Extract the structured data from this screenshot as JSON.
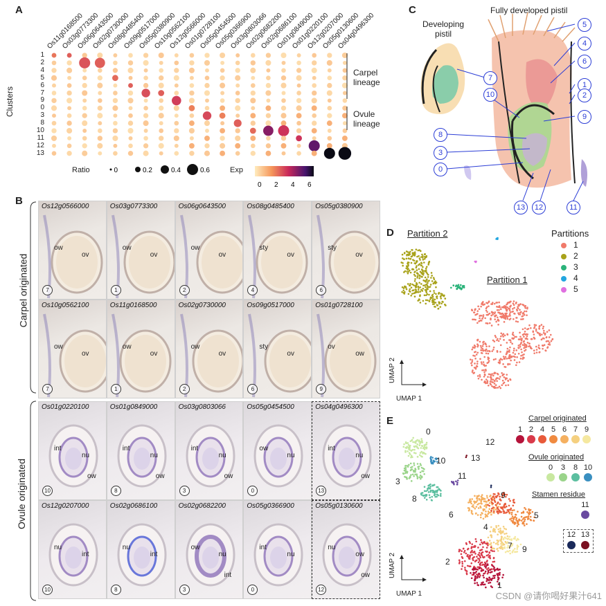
{
  "panels": {
    "A": "A",
    "B": "B",
    "C": "C",
    "D": "D",
    "E": "E"
  },
  "panelA": {
    "genes": [
      "Os11g0168500",
      "Os03g0773300",
      "Os06g0643500",
      "Os02g0730000",
      "Os08g0485400",
      "Os09g0517000",
      "Os05g0380900",
      "Os10g0562100",
      "Os12g0566000",
      "Os01g0728100",
      "Os05g0454500",
      "Os05g0366900",
      "Os03g0803066",
      "Os02g0682200",
      "Os02g0686100",
      "Os01g0849000",
      "Os01g0220100",
      "Os12g0207000",
      "Os05g0130600",
      "Os04g0496300"
    ],
    "clusters": [
      "1",
      "2",
      "4",
      "5",
      "6",
      "7",
      "9",
      "0",
      "3",
      "8",
      "10",
      "11",
      "12",
      "13"
    ],
    "y_axis_label": "Clusters",
    "carpel_lineage": "Carpel\nlineage",
    "ovule_lineage": "Ovule\nlineage",
    "ratio_label": "Ratio",
    "ratio_ticks": [
      "0",
      "0.2",
      "0.4",
      "0.6"
    ],
    "exp_label": "Exp",
    "exp_ticks": [
      "0",
      "2",
      "4",
      "6"
    ]
  },
  "panelB": {
    "carpel_label": "Carpel originated",
    "ovule_label": "Ovule originated",
    "tiles": [
      {
        "gene": "Os12g0566000",
        "cluster": "7",
        "labels": [
          "ow",
          "ov"
        ]
      },
      {
        "gene": "Os03g0773300",
        "cluster": "1",
        "labels": [
          "ow",
          "ov"
        ]
      },
      {
        "gene": "Os06g0643500",
        "cluster": "2",
        "labels": [
          "ow",
          "ov"
        ]
      },
      {
        "gene": "Os08g0485400",
        "cluster": "4",
        "labels": [
          "sty",
          "ov"
        ]
      },
      {
        "gene": "Os05g0380900",
        "cluster": "6",
        "labels": [
          "sty",
          "ov"
        ]
      },
      {
        "gene": "Os10g0562100",
        "cluster": "7",
        "labels": [
          "ow",
          "ov"
        ]
      },
      {
        "gene": "Os11g0168500",
        "cluster": "1",
        "labels": [
          "ow",
          "ov"
        ]
      },
      {
        "gene": "Os02g0730000",
        "cluster": "2",
        "labels": [
          "ow",
          "ov"
        ]
      },
      {
        "gene": "Os09g0517000",
        "cluster": "6",
        "labels": [
          "sty",
          "ov"
        ]
      },
      {
        "gene": "Os01g0728100",
        "cluster": "9",
        "labels": [
          "ov",
          "ow"
        ]
      },
      {
        "gene": "Os01g0220100",
        "cluster": "10",
        "labels": [
          "int",
          "nu",
          "ow"
        ]
      },
      {
        "gene": "Os01g0849000",
        "cluster": "8",
        "labels": [
          "int",
          "nu",
          "ow"
        ]
      },
      {
        "gene": "Os03g0803066",
        "cluster": "3",
        "labels": [
          "int",
          "nu",
          "ow"
        ]
      },
      {
        "gene": "Os05g0454500",
        "cluster": "0",
        "labels": [
          "ow",
          "nu"
        ]
      },
      {
        "gene": "Os04g0496300",
        "cluster": "13",
        "labels": [
          "int",
          "nu",
          "ow"
        ]
      },
      {
        "gene": "Os12g0207000",
        "cluster": "10",
        "labels": [
          "nu",
          "int"
        ]
      },
      {
        "gene": "Os02g0686100",
        "cluster": "8",
        "labels": [
          "nu",
          "int"
        ]
      },
      {
        "gene": "Os02g0682200",
        "cluster": "3",
        "labels": [
          "ow",
          "nu",
          "int"
        ]
      },
      {
        "gene": "Os05g0366900",
        "cluster": "0",
        "labels": [
          "int",
          "nu"
        ]
      },
      {
        "gene": "Os05g0130600",
        "cluster": "12",
        "labels": [
          "nu",
          "ow",
          "ow"
        ]
      }
    ]
  },
  "panelC": {
    "developing": "Developing\npistil",
    "fully": "Fully developed pistil",
    "numbers": [
      "5",
      "4",
      "6",
      "1",
      "2",
      "7",
      "10",
      "9",
      "8",
      "3",
      "0",
      "13",
      "12",
      "11"
    ]
  },
  "panelD": {
    "partition2": "Partition 2",
    "partition1": "Partition 1",
    "legend_title": "Partitions",
    "legend": [
      {
        "label": "1",
        "color": "#f07a6a"
      },
      {
        "label": "2",
        "color": "#a8a21a"
      },
      {
        "label": "3",
        "color": "#2bb37a"
      },
      {
        "label": "4",
        "color": "#22a6e0"
      },
      {
        "label": "5",
        "color": "#e070e0"
      }
    ],
    "umap1": "UMAP 1",
    "umap2": "UMAP 2"
  },
  "panelE": {
    "carpel_title": "Carpel originated",
    "carpel": [
      {
        "label": "1",
        "color": "#b5133a"
      },
      {
        "label": "2",
        "color": "#d93a4a"
      },
      {
        "label": "4",
        "color": "#e85a3a"
      },
      {
        "label": "5",
        "color": "#f08a40"
      },
      {
        "label": "6",
        "color": "#f5b060"
      },
      {
        "label": "7",
        "color": "#f5d080"
      },
      {
        "label": "9",
        "color": "#f5e8a0"
      }
    ],
    "ovule_title": "Ovule originated",
    "ovule": [
      {
        "label": "0",
        "color": "#c8e8a0"
      },
      {
        "label": "3",
        "color": "#9ad48a"
      },
      {
        "label": "8",
        "color": "#5cbfa0"
      },
      {
        "label": "10",
        "color": "#3a8fc0"
      }
    ],
    "stamen_title": "Stamen residue",
    "stamen": [
      {
        "label": "11",
        "color": "#6a4aa0"
      }
    ],
    "extra": [
      {
        "label": "12",
        "color": "#1a2a5a"
      },
      {
        "label": "13",
        "color": "#7a1020"
      }
    ],
    "cluster_labels": [
      "12",
      "13",
      "0",
      "10",
      "11",
      "3",
      "8",
      "9",
      "6",
      "4",
      "5",
      "7",
      "9",
      "2",
      "1"
    ],
    "umap1": "UMAP 1",
    "umap2": "UMAP 2"
  },
  "watermark": "CSDN @请你喝好果汁641"
}
